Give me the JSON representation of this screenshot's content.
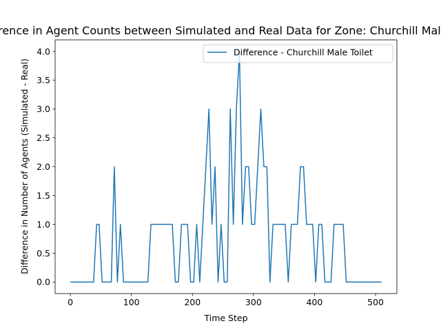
{
  "chart_data": {
    "type": "line",
    "title": "Difference in Agent Counts between Simulated and Real Data for Zone: Churchill Male Toilet",
    "xlabel": "Time Step",
    "ylabel": "Difference in Number of Agents (Simulated - Real)",
    "xlim": [
      -25,
      535
    ],
    "ylim": [
      -0.2,
      4.2
    ],
    "xticks": [
      0,
      100,
      200,
      300,
      400,
      500
    ],
    "yticks": [
      0.0,
      0.5,
      1.0,
      1.5,
      2.0,
      2.5,
      3.0,
      3.5,
      4.0
    ],
    "xtick_labels": [
      "0",
      "100",
      "200",
      "300",
      "400",
      "500"
    ],
    "ytick_labels": [
      "0.0",
      "0.5",
      "1.0",
      "1.5",
      "2.0",
      "2.5",
      "3.0",
      "3.5",
      "4.0"
    ],
    "grid": false,
    "legend_position": "top-right",
    "series": [
      {
        "name": "Difference - Churchill Male Toilet",
        "color": "#1f77b4",
        "x": [
          0,
          10,
          20,
          30,
          38,
          43,
          47,
          52,
          57,
          62,
          67,
          72,
          77,
          82,
          87,
          92,
          97,
          102,
          107,
          112,
          117,
          122,
          127,
          132,
          137,
          142,
          147,
          152,
          157,
          162,
          167,
          172,
          177,
          182,
          187,
          192,
          197,
          202,
          207,
          212,
          217,
          222,
          227,
          232,
          237,
          242,
          247,
          252,
          257,
          262,
          267,
          272,
          277,
          282,
          287,
          292,
          297,
          302,
          307,
          312,
          317,
          322,
          327,
          332,
          337,
          342,
          347,
          352,
          357,
          362,
          367,
          372,
          377,
          382,
          387,
          392,
          397,
          402,
          407,
          412,
          417,
          422,
          427,
          432,
          437,
          442,
          447,
          452,
          457,
          462,
          467,
          472,
          477,
          482,
          487,
          492,
          497,
          502,
          507,
          510
        ],
        "y": [
          0,
          0,
          0,
          0,
          0,
          1,
          1,
          0,
          0,
          0,
          0,
          2,
          0,
          1,
          0,
          0,
          0,
          0,
          0,
          0,
          0,
          0,
          0,
          1,
          1,
          1,
          1,
          1,
          1,
          1,
          1,
          0,
          0,
          1,
          1,
          1,
          0,
          0,
          1,
          0,
          1,
          2,
          3,
          1,
          2,
          0,
          1,
          0,
          0,
          3,
          1,
          3,
          4,
          1,
          2,
          2,
          1,
          1,
          2,
          3,
          2,
          2,
          0,
          1,
          1,
          1,
          1,
          1,
          0,
          1,
          1,
          1,
          2,
          2,
          1,
          1,
          1,
          0,
          1,
          1,
          0,
          0,
          0,
          1,
          1,
          1,
          1,
          0,
          0,
          0,
          0,
          0,
          0,
          0,
          0,
          0,
          0,
          0,
          0,
          0
        ]
      }
    ]
  }
}
